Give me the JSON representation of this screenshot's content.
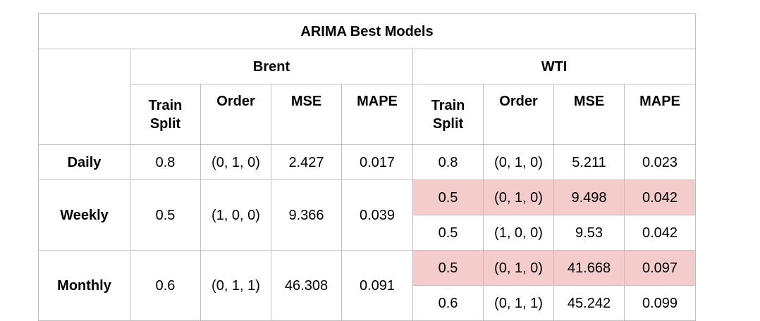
{
  "title": "ARIMA Best Models",
  "groups": [
    "Brent",
    "WTI"
  ],
  "columns": [
    "Train Split",
    "Order",
    "MSE",
    "MAPE"
  ],
  "column_lines": {
    "train_split": [
      "Train",
      "Split"
    ]
  },
  "rows": [
    {
      "label": "Daily",
      "brent": {
        "train_split": "0.8",
        "order": "(0, 1, 0)",
        "mse": "2.427",
        "mape": "0.017"
      },
      "wti": [
        {
          "train_split": "0.8",
          "order": "(0, 1, 0)",
          "mse": "5.211",
          "mape": "0.023",
          "highlight": false
        }
      ]
    },
    {
      "label": "Weekly",
      "brent": {
        "train_split": "0.5",
        "order": "(1, 0, 0)",
        "mse": "9.366",
        "mape": "0.039"
      },
      "wti": [
        {
          "train_split": "0.5",
          "order": "(0, 1, 0)",
          "mse": "9.498",
          "mape": "0.042",
          "highlight": true
        },
        {
          "train_split": "0.5",
          "order": "(1, 0, 0)",
          "mse": "9.53",
          "mape": "0.042",
          "highlight": false
        }
      ]
    },
    {
      "label": "Monthly",
      "brent": {
        "train_split": "0.6",
        "order": "(0, 1, 1)",
        "mse": "46.308",
        "mape": "0.091"
      },
      "wti": [
        {
          "train_split": "0.5",
          "order": "(0, 1, 0)",
          "mse": "41.668",
          "mape": "0.097",
          "highlight": true
        },
        {
          "train_split": "0.6",
          "order": "(0, 1, 1)",
          "mse": "45.242",
          "mape": "0.099",
          "highlight": false
        }
      ]
    }
  ],
  "colors": {
    "highlight": "#f4cccc",
    "border": "#bfbfbf"
  }
}
